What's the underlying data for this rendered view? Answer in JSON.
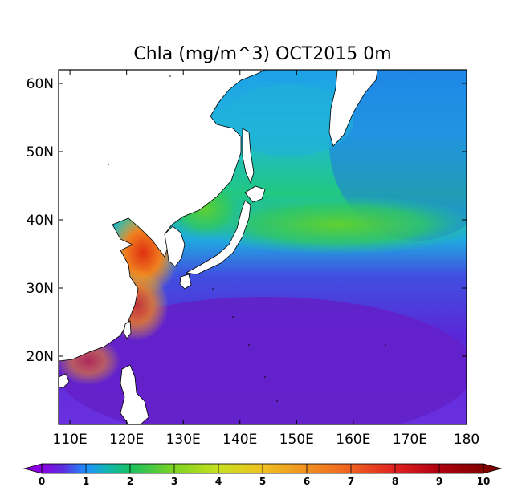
{
  "map": {
    "title": "Chla (mg/m^3) OCT2015 0m",
    "lat_labels": [
      "60N",
      "50N",
      "40N",
      "30N",
      "20N"
    ],
    "lon_labels": [
      "110E",
      "120E",
      "130E",
      "140E",
      "150E",
      "160E",
      "170E",
      "180"
    ],
    "lat_range": [
      10,
      62
    ],
    "lon_range": [
      108,
      180
    ],
    "variable": "Chla",
    "units": "mg/m^3",
    "period": "OCT2015",
    "depth": "0m"
  },
  "colorbar": {
    "labels": [
      "0",
      "1",
      "2",
      "3",
      "4",
      "5",
      "6",
      "7",
      "8",
      "9",
      "10"
    ],
    "range": [
      0,
      10
    ],
    "colors": [
      "#8b00e0",
      "#1e90ff",
      "#18c060",
      "#7ed321",
      "#c8e020",
      "#f0c020",
      "#f09020",
      "#f06020",
      "#e02020",
      "#b00010",
      "#800000"
    ]
  },
  "colors": {
    "land": "#ffffff",
    "outline": "#000000",
    "deep_ocean": "#6020d0",
    "mid_ocean": "#2a8ae8",
    "coastal": "#30d060",
    "high_chl": "#e03010"
  }
}
